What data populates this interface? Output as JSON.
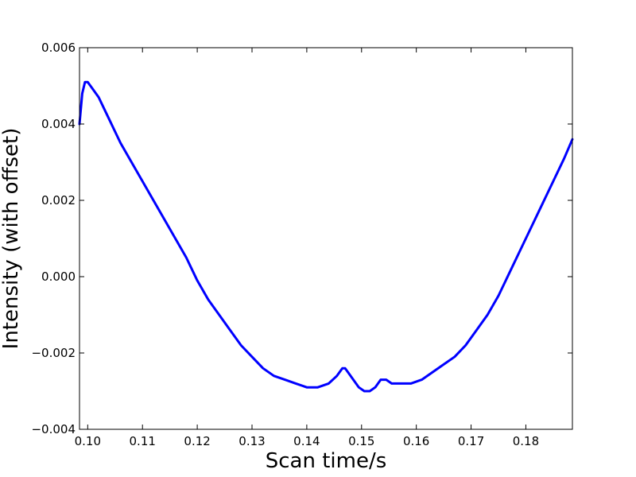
{
  "chart_data": {
    "type": "line",
    "title": "",
    "xlabel": "Scan time/s",
    "ylabel": "Intensity (with offset)",
    "xlim": [
      0.0985,
      0.1885
    ],
    "ylim": [
      -0.004,
      0.006
    ],
    "grid": false,
    "legend": "none",
    "x_ticks": [
      0.1,
      0.11,
      0.12,
      0.13,
      0.14,
      0.15,
      0.16,
      0.17,
      0.18
    ],
    "x_tick_labels": [
      "0.10",
      "0.11",
      "0.12",
      "0.13",
      "0.14",
      "0.15",
      "0.16",
      "0.17",
      "0.18"
    ],
    "y_ticks": [
      -0.004,
      -0.002,
      0.0,
      0.002,
      0.004,
      0.006
    ],
    "y_tick_labels": [
      "−0.004",
      "−0.002",
      "0.000",
      "0.002",
      "0.004",
      "0.006"
    ],
    "series": [
      {
        "color": "#0000ff",
        "x": [
          0.0985,
          0.099,
          0.0995,
          0.1,
          0.1005,
          0.101,
          0.102,
          0.103,
          0.104,
          0.105,
          0.106,
          0.108,
          0.11,
          0.112,
          0.114,
          0.116,
          0.118,
          0.12,
          0.122,
          0.124,
          0.126,
          0.128,
          0.13,
          0.132,
          0.134,
          0.136,
          0.138,
          0.14,
          0.142,
          0.144,
          0.1455,
          0.1465,
          0.147,
          0.1475,
          0.1485,
          0.1495,
          0.1505,
          0.1515,
          0.1525,
          0.1535,
          0.1545,
          0.1555,
          0.1565,
          0.1575,
          0.159,
          0.161,
          0.163,
          0.165,
          0.167,
          0.169,
          0.171,
          0.173,
          0.175,
          0.177,
          0.179,
          0.181,
          0.183,
          0.185,
          0.187,
          0.1885
        ],
        "y": [
          0.004,
          0.0048,
          0.0051,
          0.0051,
          0.005,
          0.0049,
          0.0047,
          0.0044,
          0.0041,
          0.0038,
          0.0035,
          0.003,
          0.0025,
          0.002,
          0.0015,
          0.001,
          0.0005,
          -0.0001,
          -0.0006,
          -0.001,
          -0.0014,
          -0.0018,
          -0.0021,
          -0.0024,
          -0.0026,
          -0.0027,
          -0.0028,
          -0.0029,
          -0.0029,
          -0.0028,
          -0.0026,
          -0.0024,
          -0.0024,
          -0.0025,
          -0.0027,
          -0.0029,
          -0.003,
          -0.003,
          -0.0029,
          -0.0027,
          -0.0027,
          -0.0028,
          -0.0028,
          -0.0028,
          -0.0028,
          -0.0027,
          -0.0025,
          -0.0023,
          -0.0021,
          -0.0018,
          -0.0014,
          -0.001,
          -0.0005,
          0.0001,
          0.0007,
          0.0013,
          0.0019,
          0.0025,
          0.0031,
          0.0036
        ]
      }
    ]
  }
}
